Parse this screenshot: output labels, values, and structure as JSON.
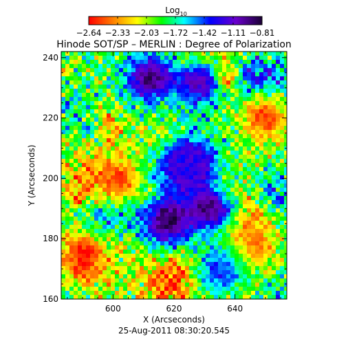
{
  "chart_data": {
    "type": "heatmap",
    "title": "Hinode SOT/SP – MERLIN : Degree of Polarization",
    "xlabel": "X (Arcseconds)",
    "ylabel": "Y (Arcseconds)",
    "timestamp": "25-Aug-2011 08:30:20.545",
    "xlim": [
      583,
      657
    ],
    "ylim": [
      160,
      242
    ],
    "xticks": [
      600,
      620,
      640
    ],
    "yticks": [
      160,
      180,
      200,
      220,
      240
    ],
    "colorbar": {
      "label_base": "Log",
      "label_sub": "10",
      "range": [
        -2.64,
        -0.81
      ],
      "tick_labels": [
        "−2.64",
        "−2.33",
        "−2.03",
        "−1.72",
        "−1.42",
        "−1.11",
        "−0.81"
      ],
      "colors": [
        "#ff0000",
        "#ff7f00",
        "#ffff00",
        "#00ff00",
        "#00ffff",
        "#0000ff",
        "#6a00cc",
        "#1a0033"
      ]
    },
    "features": [
      {
        "x": 612,
        "y": 233,
        "value": -0.9
      },
      {
        "x": 618,
        "y": 186,
        "value": -0.85
      },
      {
        "x": 632,
        "y": 190,
        "value": -0.95
      },
      {
        "x": 628,
        "y": 232,
        "value": -1.1
      },
      {
        "x": 627,
        "y": 205,
        "value": -1.2
      },
      {
        "x": 622,
        "y": 205,
        "value": -1.3
      },
      {
        "x": 636,
        "y": 170,
        "value": -1.3
      },
      {
        "x": 590,
        "y": 175,
        "value": -2.64
      },
      {
        "x": 602,
        "y": 200,
        "value": -2.5
      },
      {
        "x": 650,
        "y": 220,
        "value": -2.55
      },
      {
        "x": 645,
        "y": 178,
        "value": -2.4
      }
    ]
  }
}
